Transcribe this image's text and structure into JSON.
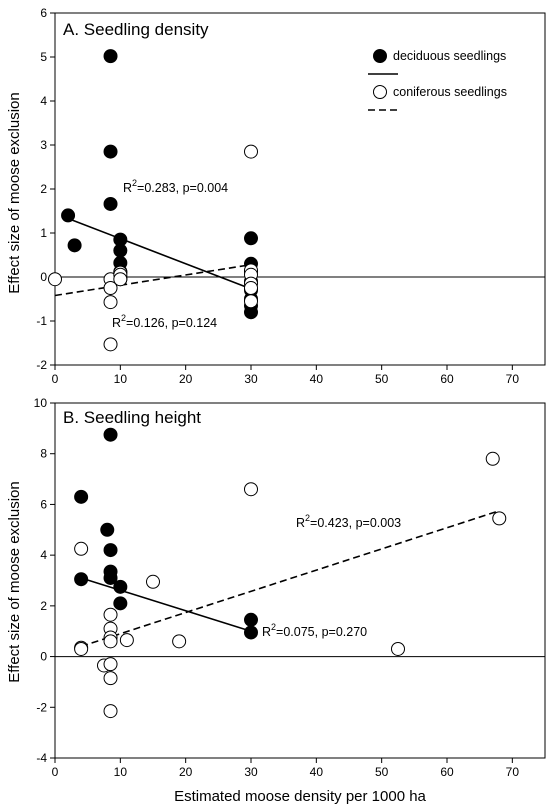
{
  "figure": {
    "xlabel": "Estimated moose density per 1000 ha",
    "ylabel": "Effect size of moose exclusion"
  },
  "chart_data": [
    {
      "type": "scatter",
      "title": "A. Seedling density",
      "xlim": [
        0,
        75
      ],
      "ylim": [
        -2,
        6
      ],
      "xticks": [
        0,
        10,
        20,
        30,
        40,
        50,
        60,
        70
      ],
      "yticks": [
        -2,
        -1,
        0,
        1,
        2,
        3,
        4,
        5,
        6
      ],
      "xticklabels": [
        "0",
        "10",
        "20",
        "30",
        "40",
        "50",
        "60",
        "70"
      ],
      "yticklabels": [
        "-2",
        "-1",
        "0",
        "1",
        "2",
        "3",
        "4",
        "5",
        "6"
      ],
      "zero_line": true,
      "grid": false,
      "legend_position": "top-right",
      "legend": [
        {
          "label": "deciduous seedlings",
          "marker": "filled-circle",
          "color": "#000000"
        },
        {
          "label": "coniferous seedlings",
          "marker": "open-circle",
          "color": "#000000"
        }
      ],
      "series": [
        {
          "name": "deciduous seedlings",
          "marker": "filled",
          "points": [
            [
              2,
              1.4
            ],
            [
              3,
              0.72
            ],
            [
              8.5,
              5.02
            ],
            [
              8.5,
              2.85
            ],
            [
              8.5,
              1.66
            ],
            [
              10,
              0.85
            ],
            [
              10,
              0.6
            ],
            [
              10,
              0.32
            ],
            [
              10,
              0.12
            ],
            [
              10,
              0.0
            ],
            [
              10,
              -0.05
            ],
            [
              30,
              0.88
            ],
            [
              30,
              0.3
            ],
            [
              30,
              0.12
            ],
            [
              30,
              -0.1
            ],
            [
              30,
              -0.3
            ],
            [
              30,
              -0.5
            ],
            [
              30,
              -0.65
            ],
            [
              30,
              -0.8
            ]
          ],
          "fit": {
            "line_style": "solid",
            "x": [
              2,
              30
            ],
            "y": [
              1.33,
              -0.27
            ],
            "label_main": "R",
            "label_sup": "2",
            "label_rest": "=0.283, p=0.004"
          }
        },
        {
          "name": "coniferous seedlings",
          "marker": "open",
          "points": [
            [
              0,
              -0.05
            ],
            [
              8.5,
              -0.05
            ],
            [
              8.5,
              -0.25
            ],
            [
              8.5,
              -0.57
            ],
            [
              8.5,
              -1.53
            ],
            [
              10,
              0.1
            ],
            [
              10,
              0.05
            ],
            [
              10,
              -0.05
            ],
            [
              30,
              2.85
            ],
            [
              30,
              0.15
            ],
            [
              30,
              0.05
            ],
            [
              30,
              -0.15
            ],
            [
              30,
              -0.25
            ],
            [
              30,
              -0.55
            ]
          ],
          "fit": {
            "line_style": "dashed",
            "x": [
              0,
              30
            ],
            "y": [
              -0.42,
              0.28
            ],
            "label_main": "R",
            "label_sup": "2",
            "label_rest": "=0.126, p=0.124"
          }
        }
      ]
    },
    {
      "type": "scatter",
      "title": "B. Seedling height",
      "xlim": [
        0,
        75
      ],
      "ylim": [
        -4,
        10
      ],
      "xticks": [
        0,
        10,
        20,
        30,
        40,
        50,
        60,
        70
      ],
      "yticks": [
        -4,
        -2,
        0,
        2,
        4,
        6,
        8,
        10
      ],
      "xticklabels": [
        "0",
        "10",
        "20",
        "30",
        "40",
        "50",
        "60",
        "70"
      ],
      "yticklabels": [
        "-4",
        "-2",
        "0",
        "2",
        "4",
        "6",
        "8",
        "10"
      ],
      "zero_line": true,
      "grid": false,
      "series": [
        {
          "name": "deciduous seedlings",
          "marker": "filled",
          "points": [
            [
              4,
              6.3
            ],
            [
              4,
              3.05
            ],
            [
              8.5,
              8.75
            ],
            [
              8,
              5.0
            ],
            [
              8.5,
              4.2
            ],
            [
              8.5,
              3.35
            ],
            [
              8.5,
              3.1
            ],
            [
              10,
              2.75
            ],
            [
              10,
              2.1
            ],
            [
              30,
              1.45
            ],
            [
              30,
              0.95
            ]
          ],
          "fit": {
            "line_style": "solid",
            "x": [
              4,
              30
            ],
            "y": [
              3.1,
              1.0
            ],
            "label_main": "R",
            "label_sup": "2",
            "label_rest": "=0.075, p=0.270"
          }
        },
        {
          "name": "coniferous seedlings",
          "marker": "open",
          "points": [
            [
              4,
              4.25
            ],
            [
              4,
              0.35
            ],
            [
              4,
              0.3
            ],
            [
              7.5,
              -0.35
            ],
            [
              8.5,
              1.65
            ],
            [
              8.5,
              1.1
            ],
            [
              8.5,
              0.75
            ],
            [
              8.5,
              0.6
            ],
            [
              8.5,
              -0.3
            ],
            [
              8.5,
              -0.85
            ],
            [
              8.5,
              -2.15
            ],
            [
              11,
              0.65
            ],
            [
              15,
              2.95
            ],
            [
              19,
              0.6
            ],
            [
              30,
              6.6
            ],
            [
              52.5,
              0.3
            ],
            [
              67,
              7.8
            ],
            [
              68,
              5.45
            ]
          ],
          "fit": {
            "line_style": "dashed",
            "x": [
              4,
              68
            ],
            "y": [
              0.4,
              5.75
            ],
            "label_main": "R",
            "label_sup": "2",
            "label_rest": "=0.423, p=0.003"
          }
        }
      ]
    }
  ]
}
